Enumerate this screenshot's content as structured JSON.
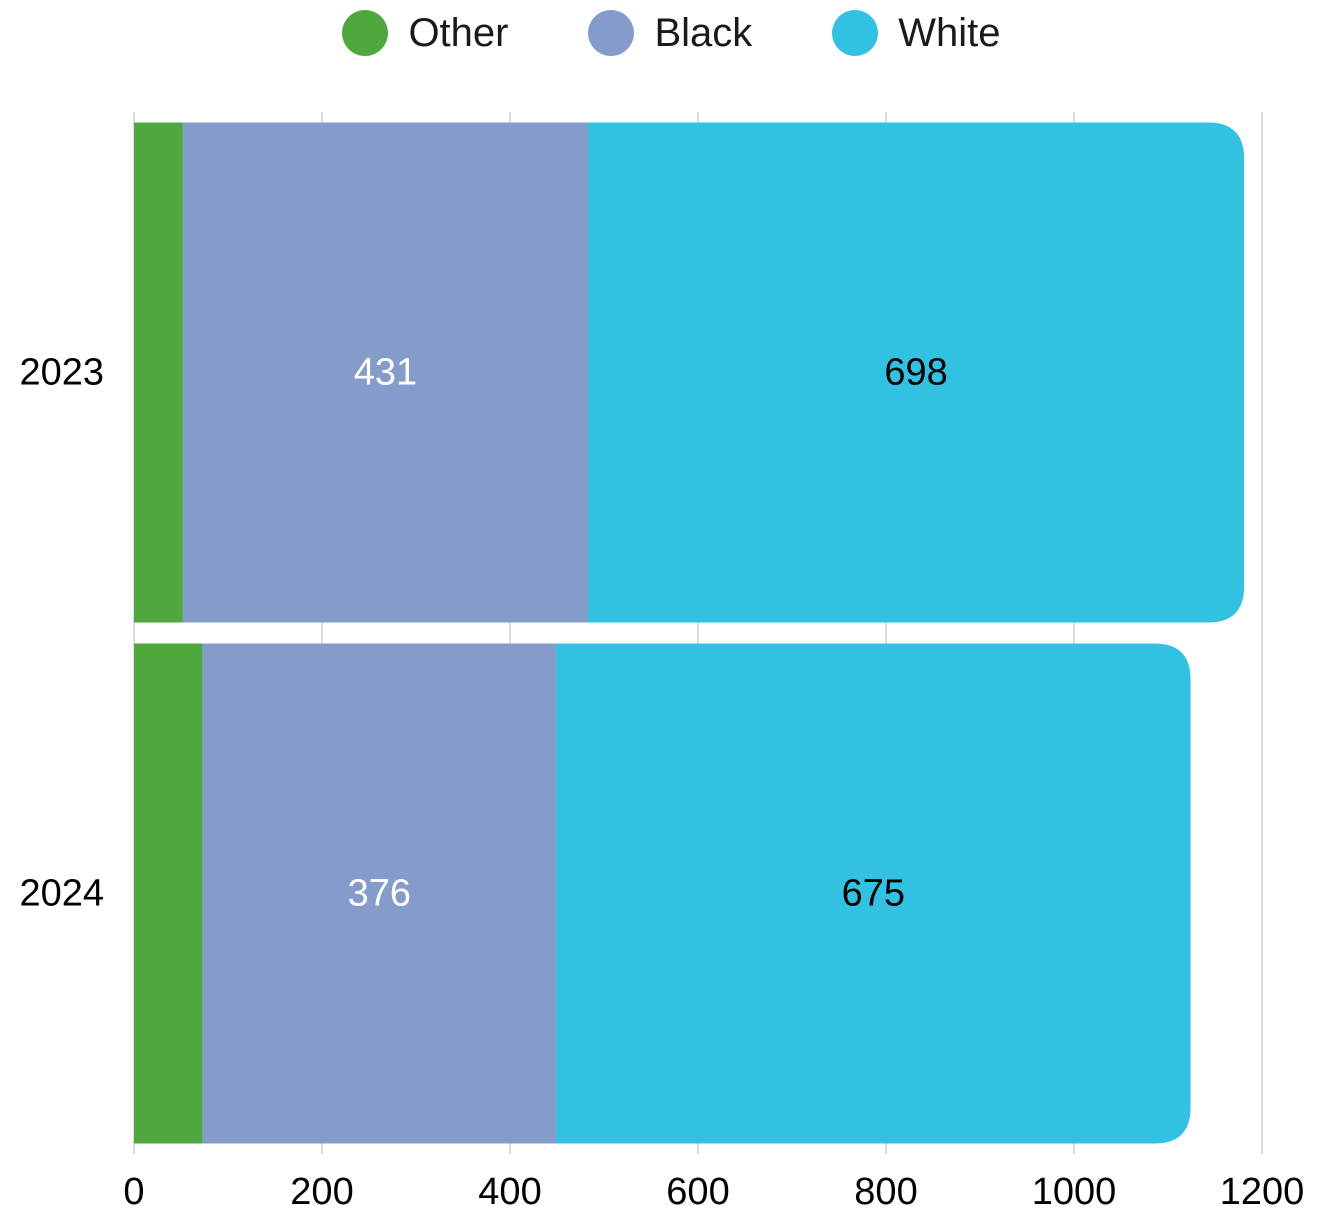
{
  "chart_data": {
    "type": "bar",
    "orientation": "horizontal",
    "stacked": true,
    "categories": [
      "2023",
      "2024"
    ],
    "series": [
      {
        "name": "Other",
        "color": "#4ea83e",
        "values": [
          52,
          73
        ]
      },
      {
        "name": "Black",
        "color": "#859ccb",
        "values": [
          431,
          376
        ]
      },
      {
        "name": "White",
        "color": "#33c1e2",
        "values": [
          698,
          675
        ]
      }
    ],
    "data_labels": [
      {
        "series": "Black",
        "category": "2023",
        "text": "431",
        "color": "#ffffff"
      },
      {
        "series": "White",
        "category": "2023",
        "text": "698",
        "color": "#000000"
      },
      {
        "series": "Black",
        "category": "2024",
        "text": "376",
        "color": "#ffffff"
      },
      {
        "series": "White",
        "category": "2024",
        "text": "675",
        "color": "#000000"
      }
    ],
    "xlim": [
      0,
      1200
    ],
    "xticks": [
      "0",
      "200",
      "400",
      "600",
      "800",
      "1000",
      "1200"
    ],
    "grid": true,
    "legend_position": "top"
  }
}
